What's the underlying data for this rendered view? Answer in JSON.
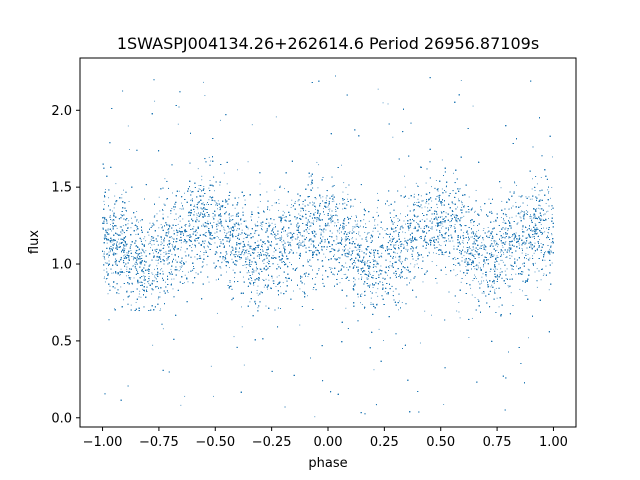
{
  "chart_data": {
    "type": "scatter",
    "title": "1SWASPJ004134.26+262614.6 Period 26956.87109s",
    "xlabel": "phase",
    "ylabel": "flux",
    "xlim": [
      -1.1,
      1.1
    ],
    "ylim": [
      -0.06,
      2.34
    ],
    "x_ticks": [
      -1.0,
      -0.75,
      -0.5,
      -0.25,
      0.0,
      0.25,
      0.5,
      0.75,
      1.0
    ],
    "x_tick_labels": [
      "−1.00",
      "−0.75",
      "−0.50",
      "−0.25",
      "0.00",
      "0.25",
      "0.50",
      "0.75",
      "1.00"
    ],
    "y_ticks": [
      0.0,
      0.5,
      1.0,
      1.5,
      2.0
    ],
    "y_tick_labels": [
      "0.0",
      "0.5",
      "1.0",
      "1.5",
      "2.0"
    ],
    "grid": false,
    "legend": "none",
    "marker_color": "#1f77b4",
    "series": [
      {
        "x_range": [
          -1.0,
          1.0
        ],
        "y_range": [
          0.0,
          2.25
        ],
        "approx_points": 26000,
        "mean_flux_by_phase": [
          {
            "phase": -1.0,
            "flux": 1.15
          },
          {
            "phase": -0.95,
            "flux": 1.14
          },
          {
            "phase": -0.9,
            "flux": 1.1
          },
          {
            "phase": -0.85,
            "flux": 1.05
          },
          {
            "phase": -0.8,
            "flux": 1.0
          },
          {
            "phase": -0.75,
            "flux": 1.05
          },
          {
            "phase": -0.7,
            "flux": 1.12
          },
          {
            "phase": -0.65,
            "flux": 1.18
          },
          {
            "phase": -0.6,
            "flux": 1.24
          },
          {
            "phase": -0.55,
            "flux": 1.27
          },
          {
            "phase": -0.5,
            "flux": 1.25
          },
          {
            "phase": -0.45,
            "flux": 1.2
          },
          {
            "phase": -0.4,
            "flux": 1.15
          },
          {
            "phase": -0.35,
            "flux": 1.08
          },
          {
            "phase": -0.3,
            "flux": 1.03
          },
          {
            "phase": -0.25,
            "flux": 1.07
          },
          {
            "phase": -0.2,
            "flux": 1.12
          },
          {
            "phase": -0.15,
            "flux": 1.16
          },
          {
            "phase": -0.1,
            "flux": 1.2
          },
          {
            "phase": -0.05,
            "flux": 1.24
          },
          {
            "phase": 0.0,
            "flux": 1.22
          },
          {
            "phase": 0.05,
            "flux": 1.16
          },
          {
            "phase": 0.1,
            "flux": 1.1
          },
          {
            "phase": 0.15,
            "flux": 1.05
          },
          {
            "phase": 0.2,
            "flux": 1.0
          },
          {
            "phase": 0.25,
            "flux": 1.04
          },
          {
            "phase": 0.3,
            "flux": 1.12
          },
          {
            "phase": 0.35,
            "flux": 1.18
          },
          {
            "phase": 0.4,
            "flux": 1.24
          },
          {
            "phase": 0.45,
            "flux": 1.27
          },
          {
            "phase": 0.5,
            "flux": 1.25
          },
          {
            "phase": 0.55,
            "flux": 1.2
          },
          {
            "phase": 0.6,
            "flux": 1.15
          },
          {
            "phase": 0.65,
            "flux": 1.08
          },
          {
            "phase": 0.7,
            "flux": 1.03
          },
          {
            "phase": 0.75,
            "flux": 1.07
          },
          {
            "phase": 0.8,
            "flux": 1.12
          },
          {
            "phase": 0.85,
            "flux": 1.16
          },
          {
            "phase": 0.9,
            "flux": 1.2
          },
          {
            "phase": 0.95,
            "flux": 1.24
          },
          {
            "phase": 1.0,
            "flux": 1.22
          }
        ],
        "scatter_sigma_flux": 0.17
      }
    ]
  }
}
